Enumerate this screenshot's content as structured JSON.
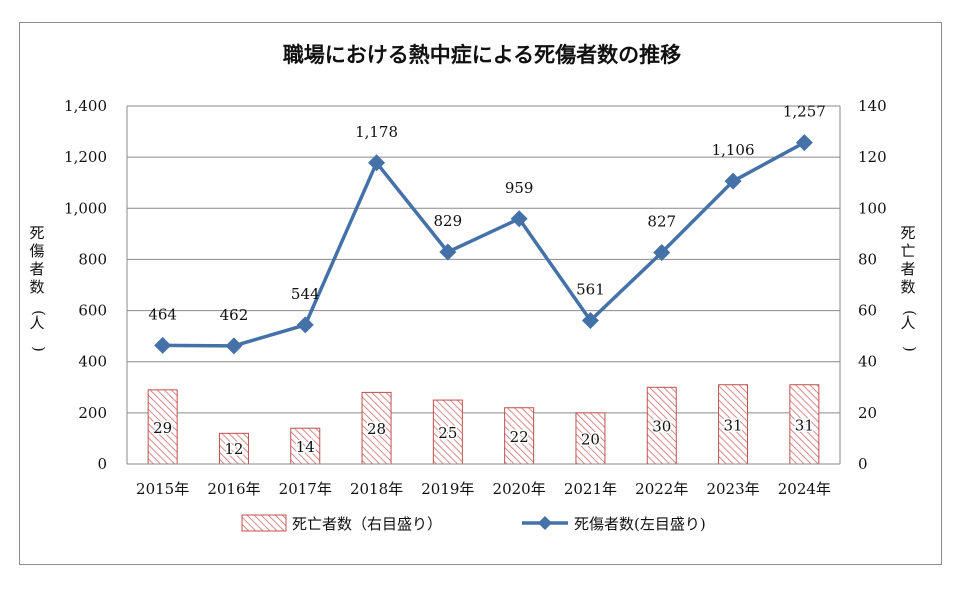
{
  "chart_data": {
    "type": "bar+line",
    "title": "職場における熱中症による死傷者数の推移",
    "categories": [
      "2015年",
      "2016年",
      "2017年",
      "2018年",
      "2019年",
      "2020年",
      "2021年",
      "2022年",
      "2023年",
      "2024年"
    ],
    "series": [
      {
        "name": "死傷者数(左目盛り)",
        "type": "line",
        "axis": "left",
        "color": "#4472a8",
        "marker": "diamond",
        "values": [
          464,
          462,
          544,
          1178,
          829,
          959,
          561,
          827,
          1106,
          1257
        ],
        "labels": [
          "464",
          "462",
          "544",
          "1,178",
          "829",
          "959",
          "561",
          "827",
          "1,106",
          "1,257"
        ]
      },
      {
        "name": "死亡者数（右目盛り）",
        "type": "bar",
        "axis": "right",
        "color": "#c0504d",
        "pattern": "diagonal-hatch",
        "values": [
          29,
          12,
          14,
          28,
          25,
          22,
          20,
          30,
          31,
          31
        ],
        "labels": [
          "29",
          "12",
          "14",
          "28",
          "25",
          "22",
          "20",
          "30",
          "31",
          "31"
        ]
      }
    ],
    "y_left": {
      "label": "死傷者数(人)",
      "range": [
        0,
        1400
      ],
      "ticks": [
        0,
        200,
        400,
        600,
        800,
        1000,
        1200,
        1400
      ],
      "tick_labels": [
        "0",
        "200",
        "400",
        "600",
        "800",
        "1,000",
        "1,200",
        "1,400"
      ]
    },
    "y_right": {
      "label": "死亡者数(人)",
      "range": [
        0,
        140
      ],
      "ticks": [
        0,
        20,
        40,
        60,
        80,
        100,
        120,
        140
      ],
      "tick_labels": [
        "0",
        "20",
        "40",
        "60",
        "80",
        "100",
        "120",
        "140"
      ]
    },
    "grid": true,
    "legend_position": "bottom-center",
    "legend": [
      {
        "label": "死亡者数（右目盛り）",
        "kind": "bar"
      },
      {
        "label": "死傷者数(左目盛り)",
        "kind": "line"
      }
    ]
  }
}
